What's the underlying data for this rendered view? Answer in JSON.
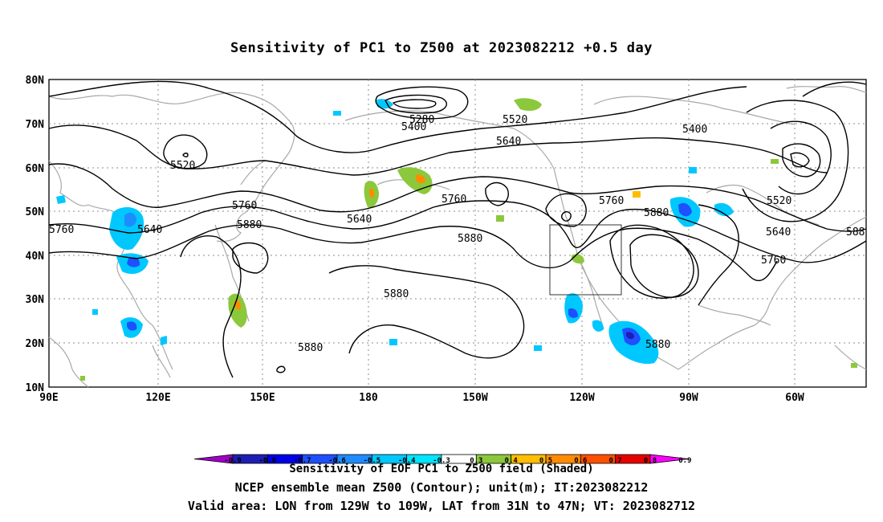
{
  "title": "Sensitivity of PC1 to Z500 at 2023082212 +0.5 day",
  "axes": {
    "lat_labels": [
      "80N",
      "70N",
      "60N",
      "50N",
      "40N",
      "30N",
      "20N",
      "10N"
    ],
    "lon_labels": [
      "90E",
      "120E",
      "150E",
      "180",
      "150W",
      "120W",
      "90W",
      "60W"
    ]
  },
  "contour_labels": [
    {
      "text": "5280"
    },
    {
      "text": "5400"
    },
    {
      "text": "5520"
    },
    {
      "text": "5400"
    },
    {
      "text": "5640"
    },
    {
      "text": "5520"
    },
    {
      "text": "5520"
    },
    {
      "text": "5760"
    },
    {
      "text": "5640"
    },
    {
      "text": "5760"
    },
    {
      "text": "5760"
    },
    {
      "text": "5640"
    },
    {
      "text": "5880"
    },
    {
      "text": "5880"
    },
    {
      "text": "5880"
    },
    {
      "text": "5640"
    },
    {
      "text": "5880"
    },
    {
      "text": "5760"
    },
    {
      "text": "5880"
    },
    {
      "text": "5880"
    },
    {
      "text": "5760"
    },
    {
      "text": "588"
    }
  ],
  "valid_area": {
    "lon_from": "129W",
    "lon_to": "109W",
    "lat_from": "31N",
    "lat_to": "47N"
  },
  "colorbar": {
    "ticks": [
      "-0.9",
      "-0.8",
      "-0.7",
      "-0.6",
      "-0.5",
      "-0.4",
      "-0.3",
      "0.3",
      "0.4",
      "0.5",
      "0.6",
      "0.7",
      "0.8",
      "0.9"
    ],
    "colors": [
      "#a000c8",
      "#1e1eb4",
      "#0000e6",
      "#1e50ff",
      "#1e8cff",
      "#00c8ff",
      "#00e6ff",
      "#ffffff",
      "#8cc83c",
      "#ffbe00",
      "#ff8c00",
      "#ff5000",
      "#e60000",
      "#ff00ff"
    ]
  },
  "footer": {
    "line1": "Sensitivity of EOF PC1 to Z500 field (Shaded)",
    "line2": "NCEP ensemble mean Z500 (Contour); unit(m); IT:2023082212",
    "line3": "Valid area: LON from 129W to 109W, LAT from 31N to 47N; VT: 2023082712"
  },
  "colors": {
    "contour": "#000000",
    "coastline": "#a0a0a0",
    "grid": "#888888",
    "negative": "#00c8ff",
    "positive": "#8cc83c"
  }
}
